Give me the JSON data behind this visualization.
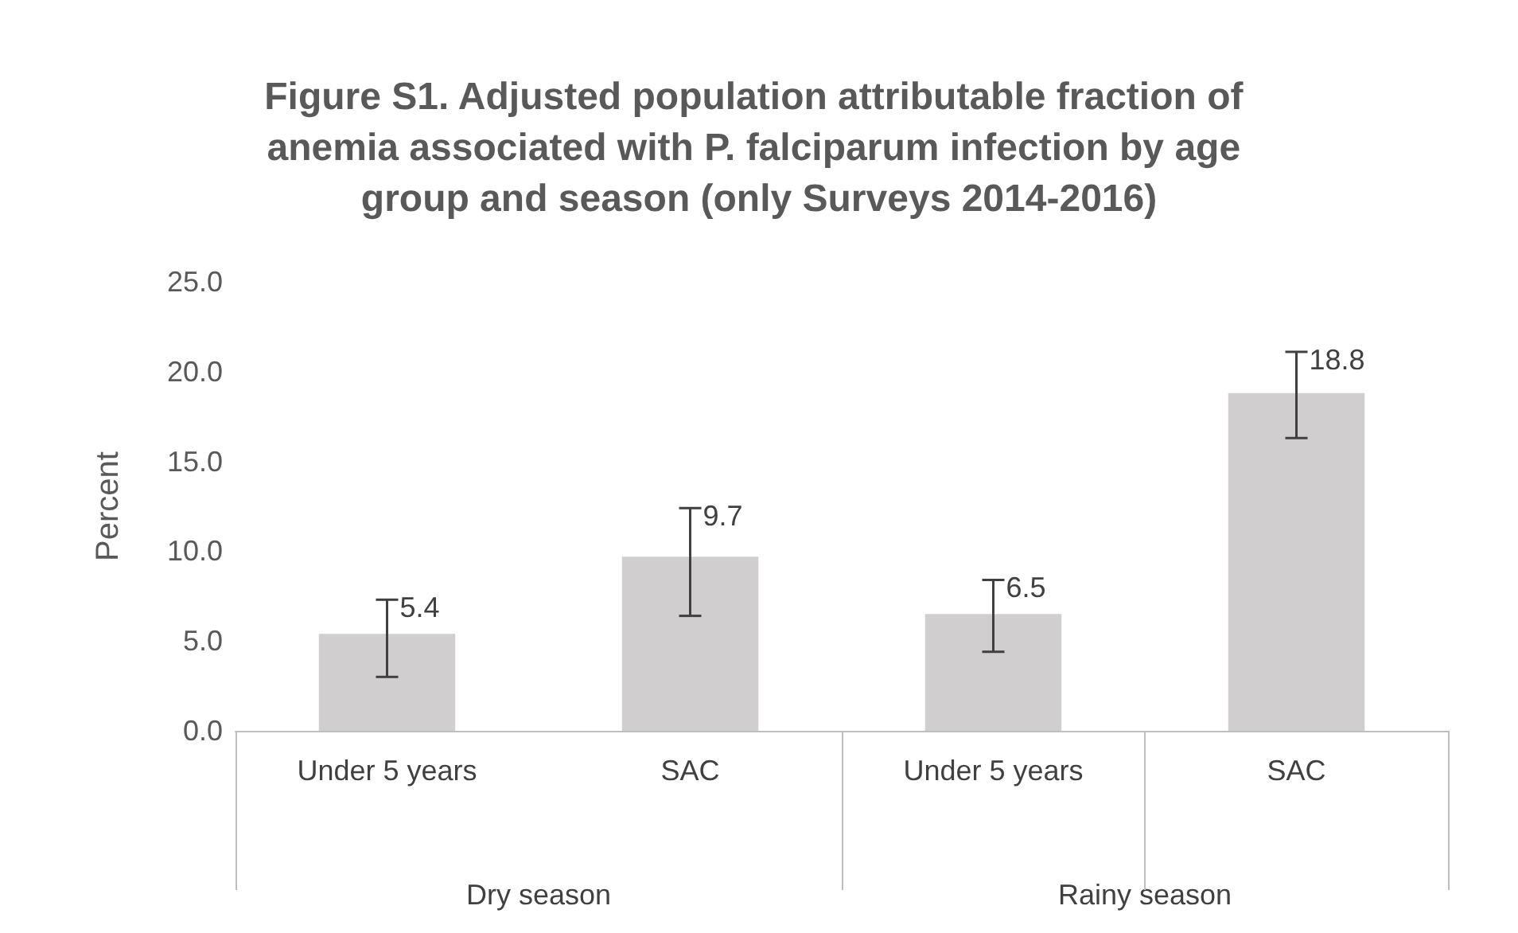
{
  "chart_data": {
    "type": "bar",
    "title": "Figure S1. Adjusted population attributable fraction of anemia associated with P. falciparum infection by age group and season (only Surveys 2014-2016)",
    "ylabel": "Percent",
    "categories": [
      "Under 5 years",
      "SAC",
      "Under 5 years",
      "SAC"
    ],
    "values": [
      5.4,
      9.7,
      6.5,
      18.8
    ],
    "color": "#d0cece",
    "errors": [
      [
        3.0,
        7.3
      ],
      [
        6.4,
        12.4
      ],
      [
        4.4,
        8.4
      ],
      [
        16.3,
        21.1
      ]
    ],
    "data_labels": true,
    "ylim": [
      0,
      25
    ],
    "yticks": [
      {
        "value": 0,
        "label": "0.0"
      },
      {
        "value": 5,
        "label": "5.0"
      },
      {
        "value": 10,
        "label": "10.0"
      },
      {
        "value": 15,
        "label": "15.0"
      },
      {
        "value": 20,
        "label": "20.0"
      },
      {
        "value": 25,
        "label": "25.0"
      }
    ],
    "grid": false,
    "annotations": [
      "Dry season",
      "Rainy season"
    ]
  }
}
